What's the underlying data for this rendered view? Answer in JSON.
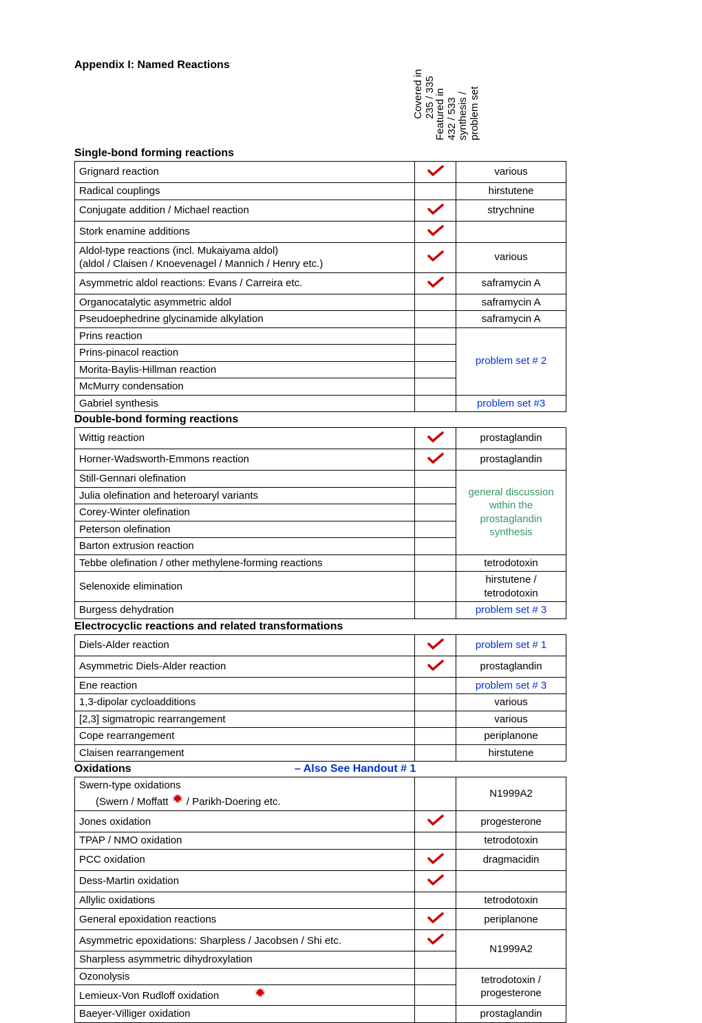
{
  "title": "Appendix I: Named Reactions",
  "headers": {
    "col1": "Covered in 235 / 335",
    "col2": "Featured in 432 / 533 synthesis / problem set"
  },
  "sections": [
    {
      "title": "Single-bond forming reactions",
      "handout": null,
      "rows": [
        {
          "r": "Grignard reaction",
          "c": true,
          "f": "various"
        },
        {
          "r": "Radical couplings",
          "c": false,
          "f": "hirstutene"
        },
        {
          "r": "Conjugate addition / Michael reaction",
          "c": true,
          "f": "strychnine"
        },
        {
          "r": "Stork enamine additions",
          "c": true,
          "f": ""
        },
        {
          "r": "Aldol-type reactions (incl. Mukaiyama aldol)\n(aldol / Claisen / Knoevenagel / Mannich / Henry etc.)",
          "c": true,
          "f": "various"
        },
        {
          "r": "Asymmetric aldol reactions: Evans / Carreira etc.",
          "c": true,
          "f": "saframycin A"
        },
        {
          "r": "Organocatalytic asymmetric aldol",
          "c": false,
          "f": "saframycin A"
        },
        {
          "r": "Pseudoephedrine glycinamide alkylation",
          "c": false,
          "f": "saframycin A"
        },
        {
          "r": "Prins reaction",
          "c": false,
          "span_start": 4,
          "f": "problem set # 2",
          "fstyle": "blue"
        },
        {
          "r": "Prins-pinacol reaction",
          "c": false
        },
        {
          "r": "Morita-Baylis-Hillman reaction",
          "c": false
        },
        {
          "r": "McMurry condensation",
          "c": false
        },
        {
          "r": "Gabriel synthesis",
          "c": false,
          "f": "problem set #3",
          "fstyle": "blue"
        }
      ]
    },
    {
      "title": "Double-bond forming reactions",
      "handout": null,
      "rows": [
        {
          "r": "Wittig reaction",
          "c": true,
          "f": "prostaglandin"
        },
        {
          "r": "Horner-Wadsworth-Emmons reaction",
          "c": true,
          "f": "prostaglandin"
        },
        {
          "r": "Still-Gennari olefination",
          "c": false,
          "span_start": 5,
          "f": "general discussion within the prostaglandin synthesis",
          "fstyle": "green"
        },
        {
          "r": "Julia olefination and heteroaryl variants",
          "c": false
        },
        {
          "r": "Corey-Winter olefination",
          "c": false
        },
        {
          "r": "Peterson olefination",
          "c": false
        },
        {
          "r": "Barton extrusion reaction",
          "c": false
        },
        {
          "r": "Tebbe olefination / other methylene-forming reactions",
          "c": false,
          "f": "tetrodotoxin"
        },
        {
          "r": "Selenoxide elimination",
          "c": false,
          "f": "hirstutene / tetrodotoxin"
        },
        {
          "r": "Burgess dehydration",
          "c": false,
          "f": "problem set # 3",
          "fstyle": "blue"
        }
      ]
    },
    {
      "title": "Electrocyclic reactions and related transformations",
      "handout": null,
      "rows": [
        {
          "r": "Diels-Alder reaction",
          "c": true,
          "f": "problem set # 1",
          "fstyle": "blue"
        },
        {
          "r": "Asymmetric Diels-Alder reaction",
          "c": true,
          "f": "prostaglandin"
        },
        {
          "r": "Ene reaction",
          "c": false,
          "f": "problem set # 3",
          "fstyle": "blue"
        },
        {
          "r": "1,3-dipolar cycloadditions",
          "c": false,
          "f": "various"
        },
        {
          "r": "[2,3] sigmatropic rearrangement",
          "c": false,
          "f": "various"
        },
        {
          "r": "Cope rearrangement",
          "c": false,
          "f": "periplanone"
        },
        {
          "r": "Claisen rearrangement",
          "c": false,
          "f": "hirstutene"
        }
      ]
    },
    {
      "title": "Oxidations",
      "handout": "– Also See Handout # 1",
      "rows": [
        {
          "r": "Swern-type oxidations",
          "indent": "(Swern / Moffatt",
          "maple": true,
          "after_maple": " / Parikh-Doering etc.",
          "c": false,
          "f": "N1999A2"
        },
        {
          "r": "Jones oxidation",
          "c": true,
          "f": "progesterone"
        },
        {
          "r": "TPAP / NMO oxidation",
          "c": false,
          "f": "tetrodotoxin"
        },
        {
          "r": "PCC oxidation",
          "c": true,
          "f": "dragmacidin"
        },
        {
          "r": "Dess-Martin oxidation",
          "c": true,
          "f": ""
        },
        {
          "r": "Allylic oxidations",
          "c": false,
          "f": "tetrodotoxin"
        },
        {
          "r": "General epoxidation reactions",
          "c": true,
          "f": "periplanone"
        },
        {
          "r": "Asymmetric epoxidations: Sharpless / Jacobsen / Shi etc.",
          "c": true,
          "span_start": 2,
          "f": "N1999A2"
        },
        {
          "r": "Sharpless asymmetric dihydroxylation",
          "c": false
        },
        {
          "r": "Ozonolysis",
          "c": false,
          "span_start": 2,
          "f": "tetrodotoxin / progesterone"
        },
        {
          "r": "Lemieux-Von Rudloff oxidation",
          "c": false,
          "maple": true,
          "maple_after_reaction": true
        },
        {
          "r": "Baeyer-Villiger oxidation",
          "c": false,
          "f": "prostaglandin"
        }
      ]
    }
  ]
}
